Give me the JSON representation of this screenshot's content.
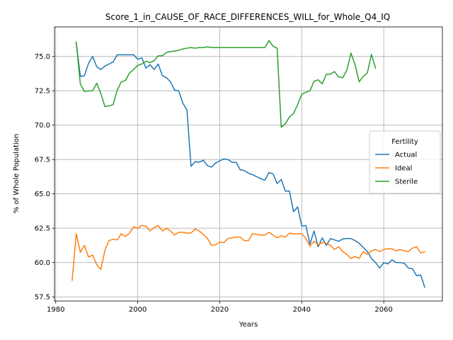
{
  "chart_data": {
    "type": "line",
    "title": "Score_1_in_CAUSE_OF_RACE_DIFFERENCES_WILL_for_Whole_Q4_IQ",
    "xlabel": "Years",
    "ylabel": "% of Whole Population",
    "xlim": [
      1979.7,
      2074.3
    ],
    "ylim": [
      57.2,
      77.15
    ],
    "xticks": [
      1980,
      2000,
      2020,
      2040,
      2060
    ],
    "xtick_labels": [
      "1980",
      "2000",
      "2020",
      "2040",
      "2060"
    ],
    "yticks": [
      57.5,
      60.0,
      62.5,
      65.0,
      67.5,
      70.0,
      72.5,
      75.0
    ],
    "ytick_labels": [
      "57.5",
      "60.0",
      "62.5",
      "65.0",
      "67.5",
      "70.0",
      "72.5",
      "75.0"
    ],
    "grid": true,
    "legend": {
      "title": "Fertility",
      "placement": "center-right"
    },
    "series": [
      {
        "name": "Actual",
        "color": "#1f77b4",
        "x": [
          1985,
          1986,
          1987,
          1988,
          1989,
          1990,
          1991,
          1992,
          1993,
          1994,
          1995,
          1996,
          1997,
          1998,
          1999,
          2000,
          2001,
          2002,
          2003,
          2004,
          2005,
          2006,
          2007,
          2008,
          2009,
          2010,
          2011,
          2012,
          2013,
          2014,
          2015,
          2016,
          2017,
          2018,
          2019,
          2020,
          2021,
          2022,
          2023,
          2024,
          2025,
          2026,
          2027,
          2028,
          2029,
          2030,
          2031,
          2032,
          2033,
          2034,
          2035,
          2036,
          2037,
          2038,
          2039,
          2040,
          2041,
          2042,
          2043,
          2044,
          2045,
          2046,
          2047,
          2048,
          2049,
          2050,
          2051,
          2052,
          2053,
          2054,
          2055,
          2056,
          2057,
          2058,
          2059,
          2060,
          2061,
          2062,
          2063,
          2064,
          2065,
          2066,
          2067,
          2068,
          2069,
          2070
        ],
        "values": [
          76.0,
          73.55,
          73.6,
          74.5,
          75.0,
          74.25,
          74.05,
          74.3,
          74.45,
          74.6,
          75.12,
          75.12,
          75.12,
          75.12,
          75.12,
          74.8,
          74.9,
          74.15,
          74.4,
          74.05,
          74.45,
          73.6,
          73.45,
          73.15,
          72.55,
          72.5,
          71.6,
          71.1,
          67.0,
          67.35,
          67.3,
          67.45,
          67.05,
          66.95,
          67.25,
          67.4,
          67.55,
          67.5,
          67.3,
          67.3,
          66.75,
          66.7,
          66.5,
          66.4,
          66.25,
          66.1,
          66.0,
          66.55,
          66.45,
          65.75,
          66.05,
          65.2,
          65.2,
          63.7,
          64.05,
          62.65,
          62.7,
          61.35,
          62.3,
          61.15,
          61.8,
          61.25,
          61.75,
          61.65,
          61.55,
          61.72,
          61.75,
          61.75,
          61.6,
          61.4,
          61.1,
          60.8,
          60.3,
          60.0,
          59.6,
          60.0,
          59.9,
          60.2,
          60.0,
          60.0,
          59.95,
          59.6,
          59.55,
          59.05,
          59.1,
          58.2
        ]
      },
      {
        "name": "Ideal",
        "color": "#ff7f0e",
        "x": [
          1984,
          1985,
          1986,
          1987,
          1988,
          1989,
          1990,
          1991,
          1992,
          1993,
          1994,
          1995,
          1996,
          1997,
          1998,
          1999,
          2000,
          2001,
          2002,
          2003,
          2004,
          2005,
          2006,
          2007,
          2008,
          2009,
          2010,
          2011,
          2012,
          2013,
          2014,
          2015,
          2016,
          2017,
          2018,
          2019,
          2020,
          2021,
          2022,
          2023,
          2024,
          2025,
          2026,
          2027,
          2028,
          2029,
          2030,
          2031,
          2032,
          2033,
          2034,
          2035,
          2036,
          2037,
          2038,
          2039,
          2040,
          2041,
          2042,
          2043,
          2044,
          2045,
          2046,
          2047,
          2048,
          2049,
          2050,
          2051,
          2052,
          2053,
          2054,
          2055,
          2056,
          2057,
          2058,
          2059,
          2060,
          2061,
          2062,
          2063,
          2064,
          2065,
          2066,
          2067,
          2068,
          2069,
          2070
        ],
        "values": [
          58.7,
          62.1,
          60.75,
          61.25,
          60.4,
          60.55,
          59.85,
          59.5,
          60.9,
          61.6,
          61.7,
          61.65,
          62.1,
          61.9,
          62.15,
          62.6,
          62.5,
          62.7,
          62.65,
          62.3,
          62.55,
          62.7,
          62.3,
          62.5,
          62.3,
          62.0,
          62.2,
          62.2,
          62.15,
          62.15,
          62.45,
          62.3,
          62.05,
          61.75,
          61.25,
          61.3,
          61.5,
          61.45,
          61.75,
          61.8,
          61.85,
          61.85,
          61.6,
          61.6,
          62.1,
          62.05,
          62.0,
          62.0,
          62.2,
          62.0,
          61.8,
          61.95,
          61.85,
          62.15,
          62.1,
          62.1,
          62.1,
          61.75,
          61.2,
          61.55,
          61.3,
          61.45,
          61.4,
          61.25,
          60.95,
          61.15,
          60.8,
          60.6,
          60.3,
          60.45,
          60.3,
          60.8,
          60.6,
          60.85,
          60.95,
          60.8,
          60.95,
          61.0,
          61.0,
          60.85,
          60.95,
          60.85,
          60.8,
          61.05,
          61.15,
          60.7,
          60.8
        ]
      },
      {
        "name": "Sterile",
        "color": "#2ca02c",
        "x": [
          1985,
          1986,
          1987,
          1988,
          1989,
          1990,
          1991,
          1992,
          1993,
          1994,
          1995,
          1996,
          1997,
          1998,
          1999,
          2000,
          2001,
          2002,
          2003,
          2004,
          2005,
          2006,
          2007,
          2008,
          2009,
          2010,
          2011,
          2012,
          2013,
          2014,
          2015,
          2016,
          2017,
          2018,
          2019,
          2020,
          2021,
          2022,
          2023,
          2024,
          2025,
          2026,
          2027,
          2028,
          2029,
          2030,
          2031,
          2032,
          2033,
          2034,
          2035,
          2036,
          2037,
          2038,
          2039,
          2040,
          2041,
          2042,
          2043,
          2044,
          2045,
          2046,
          2047,
          2048,
          2049,
          2050,
          2051,
          2052,
          2053,
          2054,
          2055,
          2056,
          2057,
          2058
        ],
        "values": [
          76.05,
          73.0,
          72.45,
          72.5,
          72.5,
          73.05,
          72.3,
          71.35,
          71.4,
          71.5,
          72.55,
          73.15,
          73.25,
          73.8,
          74.05,
          74.35,
          74.45,
          74.65,
          74.55,
          74.7,
          75.05,
          75.05,
          75.3,
          75.35,
          75.4,
          75.45,
          75.55,
          75.6,
          75.65,
          75.6,
          75.65,
          75.65,
          75.7,
          75.65,
          75.65,
          75.65,
          75.65,
          75.65,
          75.65,
          75.65,
          75.65,
          75.65,
          75.65,
          75.65,
          75.65,
          75.65,
          75.65,
          76.15,
          75.75,
          75.6,
          69.85,
          70.1,
          70.6,
          70.85,
          71.5,
          72.25,
          72.4,
          72.5,
          73.2,
          73.3,
          73.0,
          73.7,
          73.7,
          73.9,
          73.5,
          73.45,
          74.0,
          75.25,
          74.4,
          73.15,
          73.55,
          73.8,
          75.15,
          74.15
        ]
      }
    ]
  }
}
